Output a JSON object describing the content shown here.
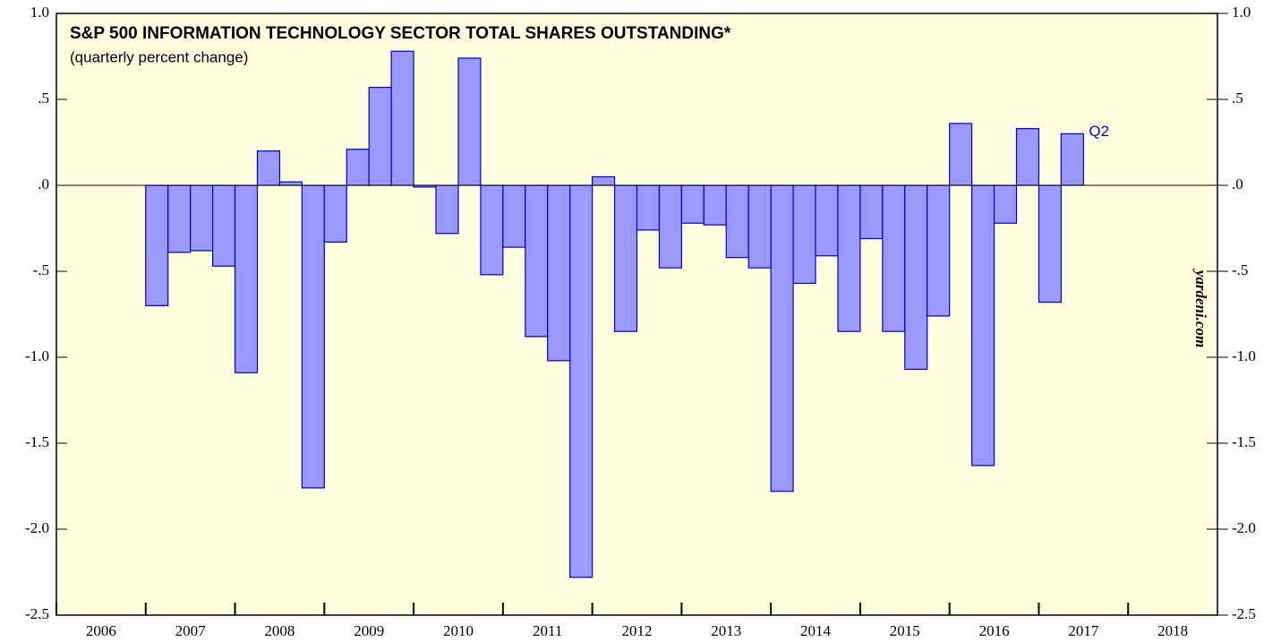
{
  "chart_data": {
    "type": "bar",
    "title": "S&P 500 INFORMATION TECHNOLOGY SECTOR TOTAL SHARES OUTSTANDING*",
    "subtitle": "(quarterly percent change)",
    "annotation": "Q2",
    "watermark": "yardeni.com",
    "x": [
      2007,
      2007.25,
      2007.5,
      2007.75,
      2008,
      2008.25,
      2008.5,
      2008.75,
      2009,
      2009.25,
      2009.5,
      2009.75,
      2010,
      2010.25,
      2010.5,
      2010.75,
      2011,
      2011.25,
      2011.5,
      2011.75,
      2012,
      2012.25,
      2012.5,
      2012.75,
      2013,
      2013.25,
      2013.5,
      2013.75,
      2014,
      2014.25,
      2014.5,
      2014.75,
      2015,
      2015.25,
      2015.5,
      2015.75,
      2016,
      2016.25,
      2016.5,
      2016.75,
      2017,
      2017.25
    ],
    "values": [
      -0.7,
      -0.39,
      -0.38,
      -0.47,
      -1.09,
      0.2,
      0.02,
      -1.76,
      -0.33,
      0.21,
      0.57,
      0.78,
      -0.01,
      -0.28,
      0.74,
      -0.52,
      -0.36,
      -0.88,
      -1.02,
      -2.28,
      0.05,
      -0.85,
      -0.26,
      -0.48,
      -0.22,
      -0.23,
      -0.42,
      -0.48,
      -1.78,
      -0.57,
      -0.41,
      -0.85,
      -0.31,
      -0.85,
      -1.07,
      -0.76,
      0.36,
      -1.63,
      -0.22,
      0.33,
      -0.68,
      0.3
    ],
    "bar_width": 0.25,
    "color": "#9999ff",
    "edge_color": "#0000cc",
    "xlim": [
      2006,
      2019
    ],
    "xticks": [
      2006,
      2007,
      2008,
      2009,
      2010,
      2011,
      2012,
      2013,
      2014,
      2015,
      2016,
      2017,
      2018
    ],
    "ylim": [
      -2.5,
      1.0
    ],
    "yticks": [
      {
        "value": -2.5,
        "label": "-2.5"
      },
      {
        "value": -2.0,
        "label": "-2.0"
      },
      {
        "value": -1.5,
        "label": "-1.5"
      },
      {
        "value": -1.0,
        "label": "-1.0"
      },
      {
        "value": -0.5,
        "label": "-.5"
      },
      {
        "value": 0,
        "label": ".0"
      },
      {
        "value": 0.5,
        "label": ".5"
      },
      {
        "value": 1.0,
        "label": "1.0"
      }
    ],
    "background": "#ffffe0"
  }
}
